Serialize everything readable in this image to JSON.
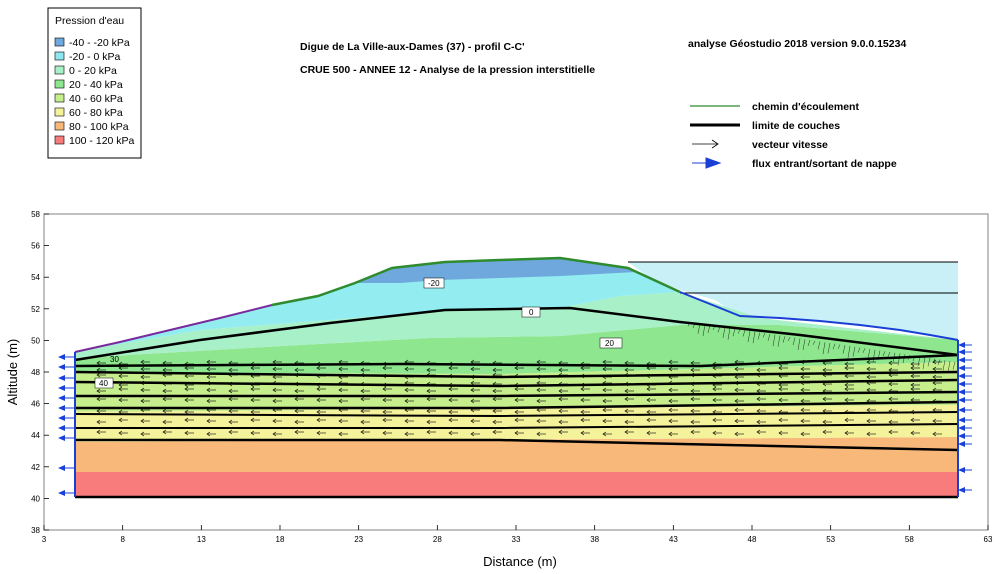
{
  "legend": {
    "title": "Pression d'eau",
    "items": [
      {
        "label": "-40 - -20 kPa",
        "color": "#6fa8dc"
      },
      {
        "label": "-20 - 0 kPa",
        "color": "#8de6f0"
      },
      {
        "label": "0 - 20 kPa",
        "color": "#a8f0c8"
      },
      {
        "label": "20 - 40 kPa",
        "color": "#8ee68e"
      },
      {
        "label": "40 - 60 kPa",
        "color": "#c6ee8c"
      },
      {
        "label": "60 - 80 kPa",
        "color": "#f4f29a"
      },
      {
        "label": "80 - 100 kPa",
        "color": "#f8b87a"
      },
      {
        "label": "100 - 120 kPa",
        "color": "#f87c7c"
      }
    ]
  },
  "titles": {
    "line1": "Digue de La Ville-aux-Dames (37) - profil C-C'",
    "line2": "CRUE 500 - ANNEE  12 - Analyse de la  pression interstitielle",
    "software": "analyse Géostudio 2018 version 9.0.0.15234"
  },
  "key": {
    "flow_path": "chemin d'écoulement",
    "layer_limit": "limite de couches",
    "velocity": "vecteur vitesse",
    "flux": "flux entrant/sortant de nappe"
  },
  "axes": {
    "xlabel": "Distance (m)",
    "ylabel": "Altitude (m)",
    "x_ticks": [
      3,
      8,
      13,
      18,
      23,
      28,
      33,
      38,
      43,
      48,
      53,
      58,
      63
    ],
    "y_ticks": [
      38,
      40,
      42,
      44,
      46,
      48,
      50,
      52,
      54,
      56,
      58
    ],
    "xlim": [
      3,
      63
    ],
    "ylim": [
      38,
      58
    ]
  },
  "contour_labels": [
    "-20",
    "0",
    "20",
    "40",
    "30"
  ]
}
